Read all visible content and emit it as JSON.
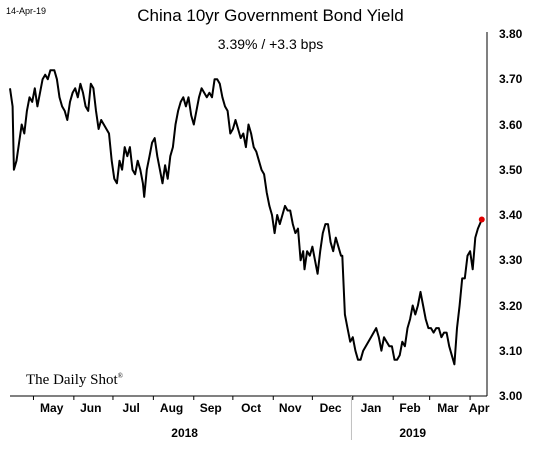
{
  "header": {
    "date_stamp": "14-Apr-19",
    "title": "China 10yr Government Bond Yield",
    "subtitle": "3.39%  /  +3.3 bps"
  },
  "branding": {
    "logo_text": "The Daily Shot",
    "logo_mark": "®"
  },
  "colors": {
    "line": "#000000",
    "last_point": "#e00000",
    "axis": "#000000",
    "divider": "#c0c0c0"
  },
  "chart_data": {
    "type": "line",
    "title": "China 10yr Government Bond Yield",
    "subtitle": "3.39%  /  +3.3 bps",
    "xlabel": "",
    "ylabel": "",
    "ylim": [
      3.0,
      3.8
    ],
    "yticks": [
      "3.80",
      "3.70",
      "3.60",
      "3.50",
      "3.40",
      "3.30",
      "3.20",
      "3.10",
      "3.00"
    ],
    "yaxis_position": "right",
    "grid": false,
    "x_range": [
      "2018-04-13",
      "2019-04-14"
    ],
    "xtick_labels": [
      {
        "label": "May",
        "date": "2018-05-15"
      },
      {
        "label": "Jun",
        "date": "2018-06-14"
      },
      {
        "label": "Jul",
        "date": "2018-07-15"
      },
      {
        "label": "Aug",
        "date": "2018-08-15"
      },
      {
        "label": "Sep",
        "date": "2018-09-14"
      },
      {
        "label": "Oct",
        "date": "2018-10-15"
      },
      {
        "label": "Nov",
        "date": "2018-11-14"
      },
      {
        "label": "Dec",
        "date": "2018-12-15"
      },
      {
        "label": "Jan",
        "date": "2019-01-15"
      },
      {
        "label": "Feb",
        "date": "2019-02-14"
      },
      {
        "label": "Mar",
        "date": "2019-03-15"
      },
      {
        "label": "Apr",
        "date": "2019-04-08"
      }
    ],
    "year_labels": [
      {
        "label": "2018",
        "date": "2018-08-25"
      },
      {
        "label": "2019",
        "date": "2019-02-16"
      }
    ],
    "year_divider_date": "2018-12-31",
    "series": [
      {
        "points": [
          [
            "2018-04-13",
            3.68
          ],
          [
            "2018-04-15",
            3.64
          ],
          [
            "2018-04-16",
            3.5
          ],
          [
            "2018-04-18",
            3.52
          ],
          [
            "2018-04-20",
            3.56
          ],
          [
            "2018-04-22",
            3.6
          ],
          [
            "2018-04-24",
            3.58
          ],
          [
            "2018-04-26",
            3.63
          ],
          [
            "2018-04-28",
            3.66
          ],
          [
            "2018-04-30",
            3.65
          ],
          [
            "2018-05-02",
            3.68
          ],
          [
            "2018-05-04",
            3.64
          ],
          [
            "2018-05-06",
            3.67
          ],
          [
            "2018-05-08",
            3.7
          ],
          [
            "2018-05-10",
            3.71
          ],
          [
            "2018-05-12",
            3.7
          ],
          [
            "2018-05-14",
            3.72
          ],
          [
            "2018-05-17",
            3.72
          ],
          [
            "2018-05-19",
            3.7
          ],
          [
            "2018-05-21",
            3.66
          ],
          [
            "2018-05-23",
            3.64
          ],
          [
            "2018-05-25",
            3.63
          ],
          [
            "2018-05-27",
            3.61
          ],
          [
            "2018-05-29",
            3.65
          ],
          [
            "2018-05-31",
            3.67
          ],
          [
            "2018-06-02",
            3.68
          ],
          [
            "2018-06-04",
            3.66
          ],
          [
            "2018-06-06",
            3.69
          ],
          [
            "2018-06-08",
            3.67
          ],
          [
            "2018-06-10",
            3.64
          ],
          [
            "2018-06-12",
            3.63
          ],
          [
            "2018-06-14",
            3.69
          ],
          [
            "2018-06-16",
            3.68
          ],
          [
            "2018-06-18",
            3.63
          ],
          [
            "2018-06-20",
            3.59
          ],
          [
            "2018-06-22",
            3.61
          ],
          [
            "2018-06-24",
            3.6
          ],
          [
            "2018-06-26",
            3.59
          ],
          [
            "2018-06-28",
            3.58
          ],
          [
            "2018-06-30",
            3.52
          ],
          [
            "2018-07-02",
            3.48
          ],
          [
            "2018-07-04",
            3.47
          ],
          [
            "2018-07-06",
            3.52
          ],
          [
            "2018-07-08",
            3.5
          ],
          [
            "2018-07-10",
            3.55
          ],
          [
            "2018-07-12",
            3.53
          ],
          [
            "2018-07-14",
            3.55
          ],
          [
            "2018-07-16",
            3.5
          ],
          [
            "2018-07-18",
            3.49
          ],
          [
            "2018-07-20",
            3.52
          ],
          [
            "2018-07-22",
            3.5
          ],
          [
            "2018-07-24",
            3.47
          ],
          [
            "2018-07-25",
            3.44
          ],
          [
            "2018-07-27",
            3.5
          ],
          [
            "2018-07-29",
            3.53
          ],
          [
            "2018-07-31",
            3.56
          ],
          [
            "2018-08-02",
            3.57
          ],
          [
            "2018-08-04",
            3.53
          ],
          [
            "2018-08-06",
            3.5
          ],
          [
            "2018-08-08",
            3.47
          ],
          [
            "2018-08-10",
            3.51
          ],
          [
            "2018-08-12",
            3.48
          ],
          [
            "2018-08-14",
            3.53
          ],
          [
            "2018-08-16",
            3.55
          ],
          [
            "2018-08-18",
            3.6
          ],
          [
            "2018-08-20",
            3.63
          ],
          [
            "2018-08-22",
            3.65
          ],
          [
            "2018-08-24",
            3.66
          ],
          [
            "2018-08-26",
            3.64
          ],
          [
            "2018-08-28",
            3.66
          ],
          [
            "2018-08-30",
            3.62
          ],
          [
            "2018-09-01",
            3.6
          ],
          [
            "2018-09-03",
            3.63
          ],
          [
            "2018-09-05",
            3.66
          ],
          [
            "2018-09-07",
            3.68
          ],
          [
            "2018-09-09",
            3.67
          ],
          [
            "2018-09-11",
            3.66
          ],
          [
            "2018-09-13",
            3.67
          ],
          [
            "2018-09-15",
            3.66
          ],
          [
            "2018-09-17",
            3.7
          ],
          [
            "2018-09-19",
            3.7
          ],
          [
            "2018-09-21",
            3.69
          ],
          [
            "2018-09-23",
            3.66
          ],
          [
            "2018-09-25",
            3.64
          ],
          [
            "2018-09-27",
            3.63
          ],
          [
            "2018-09-29",
            3.58
          ],
          [
            "2018-10-01",
            3.59
          ],
          [
            "2018-10-03",
            3.61
          ],
          [
            "2018-10-05",
            3.59
          ],
          [
            "2018-10-07",
            3.57
          ],
          [
            "2018-10-09",
            3.58
          ],
          [
            "2018-10-11",
            3.55
          ],
          [
            "2018-10-13",
            3.6
          ],
          [
            "2018-10-15",
            3.58
          ],
          [
            "2018-10-17",
            3.55
          ],
          [
            "2018-10-19",
            3.54
          ],
          [
            "2018-10-21",
            3.52
          ],
          [
            "2018-10-23",
            3.5
          ],
          [
            "2018-10-25",
            3.49
          ],
          [
            "2018-10-27",
            3.45
          ],
          [
            "2018-10-29",
            3.42
          ],
          [
            "2018-10-31",
            3.4
          ],
          [
            "2018-11-02",
            3.36
          ],
          [
            "2018-11-04",
            3.4
          ],
          [
            "2018-11-06",
            3.38
          ],
          [
            "2018-11-08",
            3.4
          ],
          [
            "2018-11-10",
            3.42
          ],
          [
            "2018-11-12",
            3.41
          ],
          [
            "2018-11-14",
            3.41
          ],
          [
            "2018-11-16",
            3.38
          ],
          [
            "2018-11-18",
            3.36
          ],
          [
            "2018-11-20",
            3.37
          ],
          [
            "2018-11-22",
            3.3
          ],
          [
            "2018-11-24",
            3.32
          ],
          [
            "2018-11-25",
            3.28
          ],
          [
            "2018-11-27",
            3.32
          ],
          [
            "2018-11-29",
            3.31
          ],
          [
            "2018-12-01",
            3.33
          ],
          [
            "2018-12-03",
            3.3
          ],
          [
            "2018-12-05",
            3.27
          ],
          [
            "2018-12-07",
            3.32
          ],
          [
            "2018-12-09",
            3.36
          ],
          [
            "2018-12-11",
            3.38
          ],
          [
            "2018-12-13",
            3.38
          ],
          [
            "2018-12-15",
            3.34
          ],
          [
            "2018-12-17",
            3.32
          ],
          [
            "2018-12-19",
            3.35
          ],
          [
            "2018-12-21",
            3.33
          ],
          [
            "2018-12-23",
            3.31
          ],
          [
            "2018-12-24",
            3.31
          ],
          [
            "2018-12-26",
            3.18
          ],
          [
            "2018-12-28",
            3.15
          ],
          [
            "2018-12-30",
            3.12
          ],
          [
            "2019-01-01",
            3.13
          ],
          [
            "2019-01-03",
            3.1
          ],
          [
            "2019-01-05",
            3.08
          ],
          [
            "2019-01-07",
            3.08
          ],
          [
            "2019-01-09",
            3.1
          ],
          [
            "2019-01-11",
            3.11
          ],
          [
            "2019-01-13",
            3.12
          ],
          [
            "2019-01-15",
            3.13
          ],
          [
            "2019-01-17",
            3.14
          ],
          [
            "2019-01-19",
            3.15
          ],
          [
            "2019-01-21",
            3.13
          ],
          [
            "2019-01-23",
            3.1
          ],
          [
            "2019-01-25",
            3.13
          ],
          [
            "2019-01-27",
            3.12
          ],
          [
            "2019-01-29",
            3.11
          ],
          [
            "2019-01-31",
            3.11
          ],
          [
            "2019-02-02",
            3.08
          ],
          [
            "2019-02-04",
            3.08
          ],
          [
            "2019-02-06",
            3.09
          ],
          [
            "2019-02-08",
            3.12
          ],
          [
            "2019-02-10",
            3.11
          ],
          [
            "2019-02-12",
            3.15
          ],
          [
            "2019-02-14",
            3.17
          ],
          [
            "2019-02-16",
            3.2
          ],
          [
            "2019-02-18",
            3.18
          ],
          [
            "2019-02-20",
            3.2
          ],
          [
            "2019-02-22",
            3.23
          ],
          [
            "2019-02-24",
            3.2
          ],
          [
            "2019-02-26",
            3.17
          ],
          [
            "2019-02-28",
            3.15
          ],
          [
            "2019-03-02",
            3.15
          ],
          [
            "2019-03-04",
            3.14
          ],
          [
            "2019-03-06",
            3.15
          ],
          [
            "2019-03-08",
            3.15
          ],
          [
            "2019-03-10",
            3.13
          ],
          [
            "2019-03-12",
            3.14
          ],
          [
            "2019-03-14",
            3.14
          ],
          [
            "2019-03-16",
            3.11
          ],
          [
            "2019-03-18",
            3.09
          ],
          [
            "2019-03-20",
            3.07
          ],
          [
            "2019-03-22",
            3.15
          ],
          [
            "2019-03-24",
            3.2
          ],
          [
            "2019-03-26",
            3.26
          ],
          [
            "2019-03-28",
            3.26
          ],
          [
            "2019-03-30",
            3.31
          ],
          [
            "2019-04-01",
            3.32
          ],
          [
            "2019-04-03",
            3.28
          ],
          [
            "2019-04-05",
            3.35
          ],
          [
            "2019-04-07",
            3.37
          ],
          [
            "2019-04-10",
            3.39
          ]
        ],
        "last_point": [
          "2019-04-10",
          3.39
        ]
      }
    ]
  }
}
